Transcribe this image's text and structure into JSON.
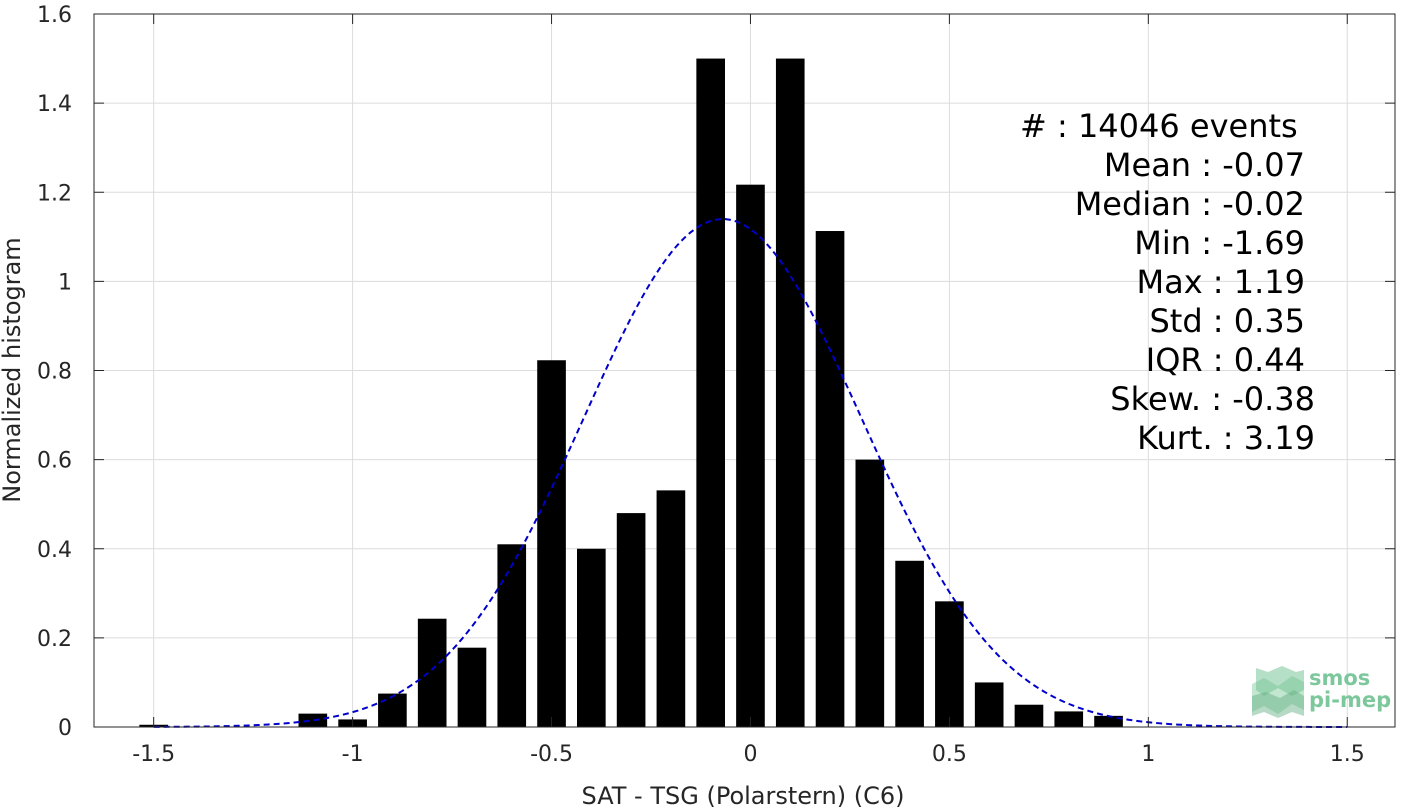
{
  "chart_data": {
    "type": "bar",
    "xlabel": "SAT - TSG (Polarstern) (C6)",
    "ylabel": "Normalized histogram",
    "xlim": [
      -1.65,
      1.62
    ],
    "ylim": [
      0,
      1.6
    ],
    "grid": true,
    "x_ticks": [
      "-1.5",
      "-1",
      "-0.5",
      "0",
      "0.5",
      "1",
      "1.5"
    ],
    "x_tick_values": [
      -1.5,
      -1,
      -0.5,
      0,
      0.5,
      1,
      1.5
    ],
    "y_ticks": [
      "0",
      "0.2",
      "0.4",
      "0.6",
      "0.8",
      "1",
      "1.2",
      "1.4",
      "1.6"
    ],
    "y_tick_values": [
      0,
      0.2,
      0.4,
      0.6,
      0.8,
      1,
      1.2,
      1.4,
      1.6
    ],
    "bin_width": 0.1,
    "bar_color": "#000000",
    "bins": {
      "x": [
        -1.5,
        -1.1,
        -1.0,
        -0.9,
        -0.8,
        -0.7,
        -0.6,
        -0.5,
        -0.4,
        -0.3,
        -0.2,
        -0.1,
        0.0,
        0.1,
        0.2,
        0.3,
        0.4,
        0.5,
        0.6,
        0.7,
        0.8,
        0.9
      ],
      "values": [
        0.005,
        0.03,
        0.017,
        0.075,
        0.243,
        0.178,
        0.41,
        0.823,
        0.4,
        0.48,
        0.531,
        1.5,
        1.217,
        1.5,
        1.113,
        0.6,
        0.373,
        0.282,
        0.1,
        0.05,
        0.035,
        0.025
      ]
    },
    "fit_curve": {
      "style": "dashed",
      "color": "#0000cc",
      "mean": -0.07,
      "std": 0.35,
      "x_range": [
        -1.5,
        1.5
      ]
    },
    "stats": [
      "#  : 14046 events",
      "Mean : -0.07",
      "Median : -0.02",
      "Min : -1.69",
      "Max : 1.19",
      "Std : 0.35",
      "IQR : 0.44",
      "Skew. : -0.38",
      "Kurt. : 3.19"
    ]
  },
  "logo": {
    "line1": "smos",
    "line2": "pi-mep",
    "color": "#6dbf8f"
  }
}
